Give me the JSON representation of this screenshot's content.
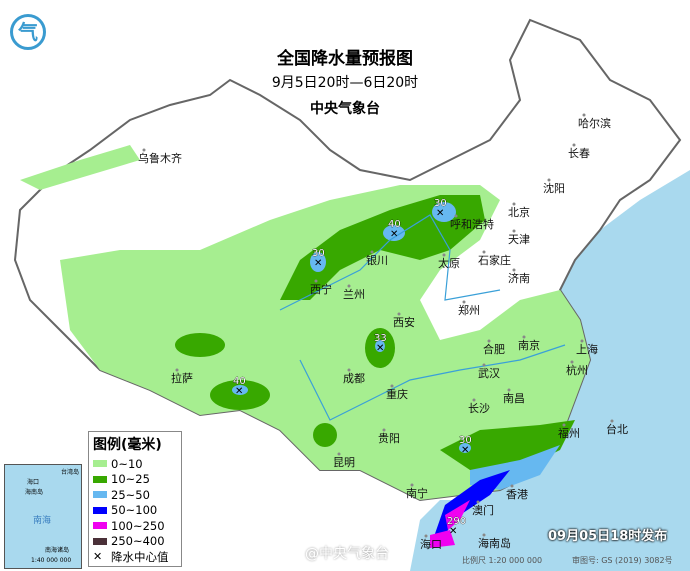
{
  "header": {
    "title": "全国降水量预报图",
    "period": "9月5日20时—6日20时",
    "issuer": "中央气象台"
  },
  "legend": {
    "title": "图例(毫米)",
    "items": [
      {
        "label": "0~10",
        "color": "#a6ee90"
      },
      {
        "label": "10~25",
        "color": "#38a800"
      },
      {
        "label": "25~50",
        "color": "#66b8f0"
      },
      {
        "label": "50~100",
        "color": "#0000fe"
      },
      {
        "label": "100~250",
        "color": "#f000f0"
      },
      {
        "label": "250~400",
        "color": "#4a3038"
      }
    ],
    "center_label": "降水中心值"
  },
  "cities": [
    "乌鲁木齐",
    "哈尔滨",
    "长春",
    "沈阳",
    "北京",
    "天津",
    "呼和浩特",
    "银川",
    "太原",
    "石家庄",
    "济南",
    "西宁",
    "兰州",
    "西安",
    "郑州",
    "合肥",
    "南京",
    "上海",
    "杭州",
    "武汉",
    "成都",
    "重庆",
    "拉萨",
    "长沙",
    "南昌",
    "福州",
    "台北",
    "贵阳",
    "昆明",
    "南宁",
    "香港",
    "澳门",
    "海口",
    "海南岛"
  ],
  "rain_centers": [
    "30",
    "40",
    "30",
    "33",
    "40",
    "30",
    "290"
  ],
  "inset": {
    "labels": [
      "海口",
      "海南岛",
      "台湾岛",
      "南海",
      "南海诸岛",
      "1:40 000 000"
    ]
  },
  "footer": {
    "issued": "09月05日18时发布",
    "scale": "比例尺 1:20 000 000",
    "approval": "审图号: GS (2019) 3082号",
    "watermark": "@中央气象台"
  },
  "logo": "气"
}
